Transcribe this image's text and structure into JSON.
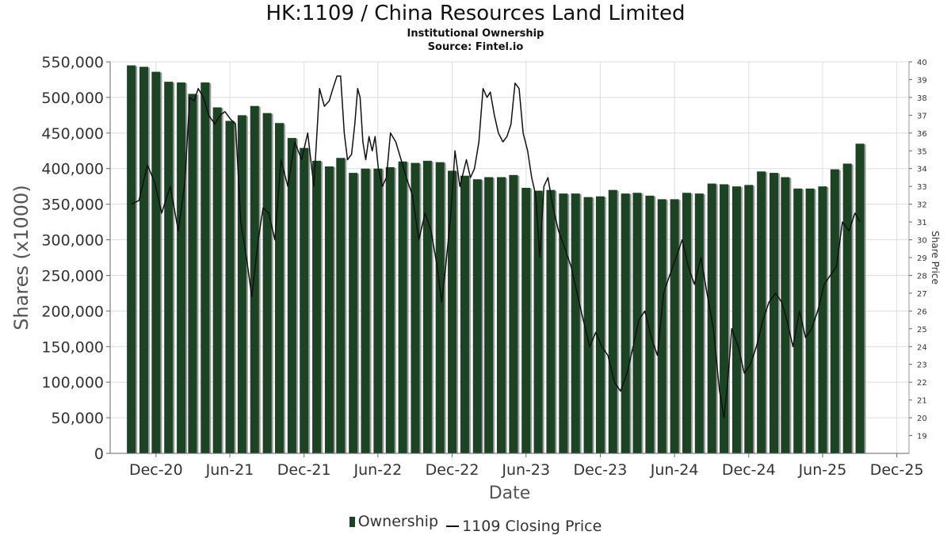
{
  "header": {
    "title": "HK:1109 / China Resources Land Limited",
    "subtitle": "Institutional Ownership",
    "source": "Source: Fintel.io"
  },
  "legend": {
    "ownership_label": "Ownership",
    "price_label": "1109 Closing Price"
  },
  "colors": {
    "bar": "#1b4324",
    "bar_shadow": "#9a9a9a",
    "price_line": "#111111",
    "grid": "#dddddd"
  },
  "chart_data": {
    "type": "bar",
    "title": "HK:1109 / China Resources Land Limited",
    "subtitle": "Institutional Ownership",
    "xlabel": "Date",
    "ylabel": "Shares (x1000)",
    "y2label": "Share Price",
    "x_ticks": [
      "Dec-20",
      "Jun-21",
      "Dec-21",
      "Jun-22",
      "Dec-22",
      "Jun-23",
      "Dec-23",
      "Jun-24",
      "Dec-24",
      "Jun-25",
      "Dec-25"
    ],
    "x_range": [
      "2020-08-10",
      "2025-12-31"
    ],
    "ylim": [
      0,
      550000
    ],
    "y_ticks": [
      0,
      50000,
      100000,
      150000,
      200000,
      250000,
      300000,
      350000,
      400000,
      450000,
      500000,
      550000
    ],
    "y_tick_labels": [
      "0",
      "50,000",
      "100,000",
      "150,000",
      "200,000",
      "250,000",
      "300,000",
      "350,000",
      "400,000",
      "450,000",
      "500,000",
      "550,000"
    ],
    "y2lim": [
      18,
      40
    ],
    "y2_ticks": [
      19,
      20,
      21,
      22,
      23,
      24,
      25,
      26,
      27,
      28,
      29,
      30,
      31,
      32,
      33,
      34,
      35,
      36,
      37,
      38,
      39,
      40
    ],
    "grid": true,
    "legend_position": "bottom",
    "series": [
      {
        "name": "Ownership",
        "type": "bar",
        "x": [
          "2020-10-01",
          "2020-11-01",
          "2020-12-01",
          "2021-01-01",
          "2021-02-01",
          "2021-03-01",
          "2021-04-01",
          "2021-05-01",
          "2021-06-01",
          "2021-07-01",
          "2021-08-01",
          "2021-09-01",
          "2021-10-01",
          "2021-11-01",
          "2021-12-01",
          "2022-01-01",
          "2022-02-01",
          "2022-03-01",
          "2022-04-01",
          "2022-05-01",
          "2022-06-01",
          "2022-07-01",
          "2022-08-01",
          "2022-09-01",
          "2022-10-01",
          "2022-11-01",
          "2022-12-01",
          "2023-01-01",
          "2023-02-01",
          "2023-03-01",
          "2023-04-01",
          "2023-05-01",
          "2023-06-01",
          "2023-07-01",
          "2023-08-01",
          "2023-09-01",
          "2023-10-01",
          "2023-11-01",
          "2023-12-01",
          "2024-01-01",
          "2024-02-01",
          "2024-03-01",
          "2024-04-01",
          "2024-05-01",
          "2024-06-01",
          "2024-07-01",
          "2024-08-01",
          "2024-09-01",
          "2024-10-01",
          "2024-11-01",
          "2024-12-01",
          "2025-01-01",
          "2025-02-01",
          "2025-03-01",
          "2025-04-01",
          "2025-05-01",
          "2025-06-01",
          "2025-07-01",
          "2025-08-01",
          "2025-09-01"
        ],
        "values": [
          545000,
          543000,
          536000,
          522000,
          521000,
          505000,
          521000,
          486000,
          467000,
          475000,
          488000,
          478000,
          464000,
          443000,
          429000,
          411000,
          403000,
          415000,
          394000,
          400000,
          400000,
          402000,
          410000,
          408000,
          411000,
          409000,
          397000,
          390000,
          385000,
          388000,
          388000,
          391000,
          373000,
          369000,
          370000,
          365000,
          365000,
          360000,
          361000,
          370000,
          365000,
          366000,
          362000,
          357000,
          357000,
          366000,
          365000,
          379000,
          378000,
          375000,
          377000,
          396000,
          394000,
          388000,
          372000,
          372000,
          375000,
          399000,
          407000,
          435000
        ]
      },
      {
        "name": "1109 Closing Price",
        "type": "line",
        "x": [
          "2020-10-01",
          "2020-10-20",
          "2020-11-10",
          "2020-11-28",
          "2020-12-15",
          "2021-01-05",
          "2021-01-25",
          "2021-02-10",
          "2021-02-22",
          "2021-03-05",
          "2021-03-15",
          "2021-03-28",
          "2021-04-10",
          "2021-04-25",
          "2021-05-08",
          "2021-05-20",
          "2021-06-02",
          "2021-06-15",
          "2021-06-28",
          "2021-07-12",
          "2021-07-25",
          "2021-08-10",
          "2021-08-22",
          "2021-09-05",
          "2021-09-20",
          "2021-10-05",
          "2021-10-22",
          "2021-11-08",
          "2021-11-25",
          "2021-12-10",
          "2021-12-25",
          "2022-01-08",
          "2022-01-20",
          "2022-02-01",
          "2022-02-10",
          "2022-02-20",
          "2022-03-01",
          "2022-03-10",
          "2022-03-18",
          "2022-03-28",
          "2022-04-05",
          "2022-04-12",
          "2022-04-18",
          "2022-04-25",
          "2022-05-02",
          "2022-05-10",
          "2022-05-18",
          "2022-05-25",
          "2022-06-02",
          "2022-06-12",
          "2022-06-22",
          "2022-07-02",
          "2022-07-15",
          "2022-07-28",
          "2022-08-10",
          "2022-08-25",
          "2022-09-10",
          "2022-09-25",
          "2022-10-10",
          "2022-10-25",
          "2022-11-05",
          "2022-11-15",
          "2022-11-28",
          "2022-12-08",
          "2022-12-20",
          "2023-01-05",
          "2023-01-15",
          "2023-01-25",
          "2023-02-05",
          "2023-02-15",
          "2023-02-25",
          "2023-03-05",
          "2023-03-15",
          "2023-03-25",
          "2023-04-05",
          "2023-04-15",
          "2023-04-25",
          "2023-05-05",
          "2023-05-15",
          "2023-05-25",
          "2023-06-05",
          "2023-06-15",
          "2023-06-25",
          "2023-07-05",
          "2023-07-15",
          "2023-07-25",
          "2023-08-05",
          "2023-08-20",
          "2023-09-05",
          "2023-09-20",
          "2023-10-05",
          "2023-10-20",
          "2023-11-05",
          "2023-11-20",
          "2023-12-05",
          "2023-12-20",
          "2024-01-05",
          "2024-01-20",
          "2024-02-05",
          "2024-02-20",
          "2024-03-05",
          "2024-03-20",
          "2024-04-05",
          "2024-04-20",
          "2024-05-05",
          "2024-05-20",
          "2024-06-05",
          "2024-06-20",
          "2024-07-05",
          "2024-07-20",
          "2024-08-05",
          "2024-08-20",
          "2024-09-05",
          "2024-09-20",
          "2024-10-01",
          "2024-10-10",
          "2024-10-20",
          "2024-11-05",
          "2024-11-20",
          "2024-12-05",
          "2024-12-20",
          "2025-01-05",
          "2025-01-20",
          "2025-02-05",
          "2025-02-20",
          "2025-03-05",
          "2025-03-20",
          "2025-04-05",
          "2025-04-20",
          "2025-05-05",
          "2025-05-20",
          "2025-06-05",
          "2025-06-20",
          "2025-07-05",
          "2025-07-20",
          "2025-08-05",
          "2025-08-20",
          "2025-09-01"
        ],
        "values": [
          32.0,
          32.2,
          34.2,
          33.2,
          31.5,
          33.0,
          30.5,
          33.2,
          38.0,
          37.8,
          38.5,
          38.0,
          37.0,
          36.5,
          37.0,
          37.2,
          36.8,
          36.5,
          31.0,
          29.0,
          26.8,
          30.0,
          31.8,
          31.5,
          30.0,
          34.5,
          33.0,
          35.5,
          34.5,
          36.0,
          33.0,
          38.5,
          37.5,
          37.8,
          38.5,
          39.2,
          39.2,
          36.0,
          34.5,
          34.8,
          36.5,
          38.5,
          38.0,
          35.5,
          34.5,
          35.8,
          35.0,
          35.8,
          34.0,
          33.0,
          33.5,
          36.0,
          35.5,
          34.5,
          33.5,
          32.5,
          30.0,
          31.5,
          30.5,
          28.5,
          26.5,
          28.5,
          31.5,
          35.0,
          33.0,
          34.5,
          33.5,
          34.0,
          35.5,
          38.5,
          38.0,
          38.3,
          37.0,
          36.0,
          35.5,
          35.8,
          36.5,
          38.8,
          38.5,
          36.0,
          35.0,
          33.5,
          32.5,
          29.0,
          33.0,
          33.5,
          32.0,
          30.5,
          29.5,
          28.5,
          27.0,
          25.5,
          24.0,
          24.8,
          24.0,
          23.5,
          22.0,
          21.5,
          22.5,
          24.0,
          25.5,
          26.0,
          24.5,
          23.5,
          27.0,
          28.0,
          29.0,
          30.0,
          28.5,
          27.5,
          29.0,
          27.0,
          25.0,
          21.5,
          20.0,
          22.0,
          25.0,
          24.0,
          22.5,
          23.0,
          24.0,
          25.5,
          26.5,
          27.0,
          26.5,
          25.5,
          24.0,
          26.0,
          24.5,
          25.0,
          26.0,
          27.5,
          28.0,
          28.5,
          31.0,
          30.5,
          31.5,
          31.0
        ]
      }
    ]
  }
}
